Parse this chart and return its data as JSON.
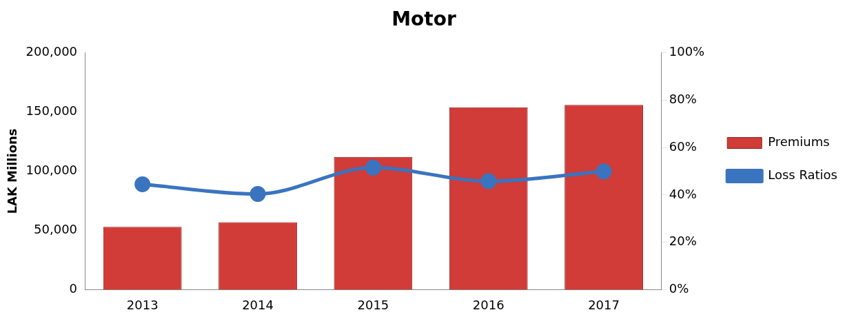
{
  "chart_data": {
    "type": "bar",
    "title": "Motor",
    "ylabel": "LAK Millions",
    "categories": [
      "2013",
      "2014",
      "2015",
      "2016",
      "2017"
    ],
    "series": [
      {
        "name": "Premiums",
        "color": "#d13b38",
        "values": [
          53000,
          57000,
          112000,
          154000,
          156000
        ]
      },
      {
        "name": "Loss Ratios",
        "type": "line",
        "axis": "y2",
        "color": "#3a74bf",
        "marker": "circle",
        "values": [
          44.5,
          40.4,
          51.5,
          45.8,
          49.9
        ]
      }
    ],
    "ylim": [
      0,
      200000
    ],
    "yticks": [
      {
        "value": 0,
        "label": "0"
      },
      {
        "value": 50000,
        "label": "50,000"
      },
      {
        "value": 100000,
        "label": "100,000"
      },
      {
        "value": 150000,
        "label": "150,000"
      },
      {
        "value": 200000,
        "label": "200,000"
      }
    ],
    "y2lim": [
      0,
      100
    ],
    "y2ticks": [
      {
        "value": 0,
        "label": "0%"
      },
      {
        "value": 20,
        "label": "20%"
      },
      {
        "value": 40,
        "label": "40%"
      },
      {
        "value": 60,
        "label": "60%"
      },
      {
        "value": 80,
        "label": "80%"
      },
      {
        "value": 100,
        "label": "100%"
      }
    ],
    "grid": false,
    "legend": "right"
  }
}
